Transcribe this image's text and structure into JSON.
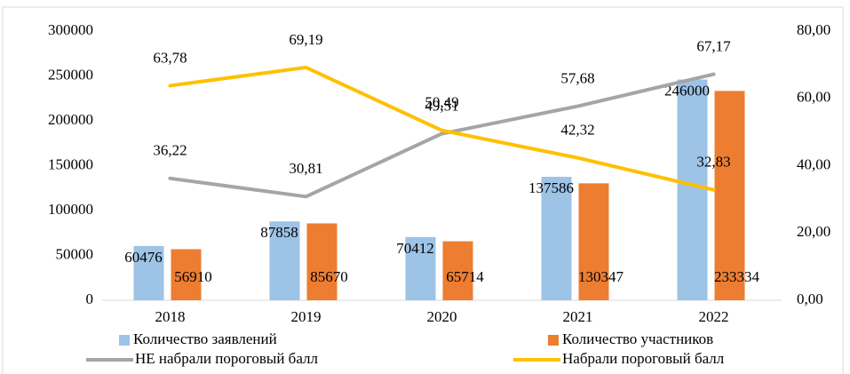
{
  "chart_data": {
    "type": "bar",
    "categories": [
      "2018",
      "2019",
      "2020",
      "2021",
      "2022"
    ],
    "series": [
      {
        "name": "Количество заявлений",
        "color": "#9dc3e6",
        "type": "bar",
        "values": [
          60476,
          87858,
          70412,
          137586,
          246000
        ]
      },
      {
        "name": "Количество участников",
        "color": "#ed7d31",
        "type": "bar",
        "values": [
          56910,
          85670,
          65714,
          130347,
          233334
        ]
      },
      {
        "name": "НЕ набрали пороговый балл",
        "color": "#a5a5a5",
        "type": "line",
        "axis": "y2",
        "values": [
          36.22,
          30.81,
          49.51,
          57.68,
          67.17
        ],
        "value_labels": [
          "36,22",
          "30,81",
          "49,51",
          "57,68",
          "67,17"
        ]
      },
      {
        "name": "Набрали пороговый балл",
        "color": "#ffc000",
        "type": "line",
        "axis": "y2",
        "values": [
          63.78,
          69.19,
          50.49,
          42.32,
          32.83
        ],
        "value_labels": [
          "63,78",
          "69,19",
          "50,49",
          "42,32",
          "32,83"
        ]
      }
    ],
    "ylim": [
      0,
      300000
    ],
    "yticks": [
      0,
      50000,
      100000,
      150000,
      200000,
      250000,
      300000
    ],
    "y2lim": [
      0,
      80
    ],
    "y2ticks": [
      {
        "value": 0,
        "label": "0,00"
      },
      {
        "value": 20,
        "label": "20,00"
      },
      {
        "value": 40,
        "label": "40,00"
      },
      {
        "value": 60,
        "label": "60,00"
      },
      {
        "value": 80,
        "label": "80,00"
      }
    ]
  }
}
